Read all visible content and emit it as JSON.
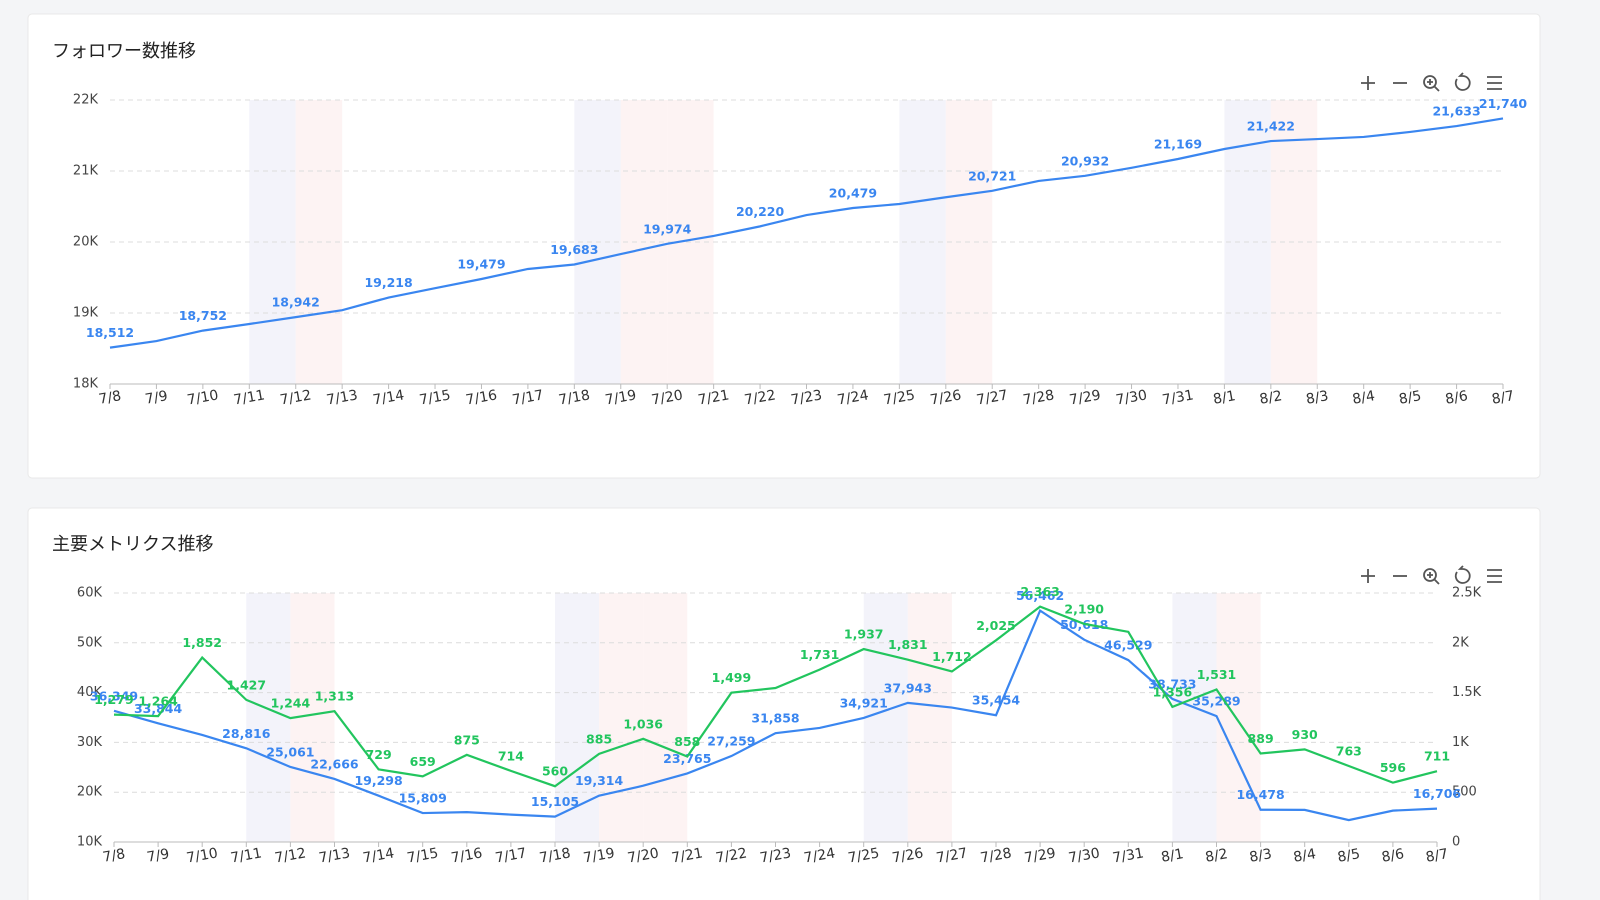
{
  "chart_data": [
    {
      "type": "line",
      "title": "フォロワー数推移",
      "categories": [
        "7/8",
        "7/9",
        "7/10",
        "7/11",
        "7/12",
        "7/13",
        "7/14",
        "7/15",
        "7/16",
        "7/17",
        "7/18",
        "7/19",
        "7/20",
        "7/21",
        "7/22",
        "7/23",
        "7/24",
        "7/25",
        "7/26",
        "7/27",
        "7/28",
        "7/29",
        "7/30",
        "7/31",
        "8/1",
        "8/2",
        "8/3",
        "8/4",
        "8/5",
        "8/6",
        "8/7"
      ],
      "series": [
        {
          "color": "#3a86f0",
          "values": [
            18512,
            18605,
            18752,
            18845,
            18942,
            19040,
            19218,
            19350,
            19479,
            19620,
            19683,
            19830,
            19974,
            20085,
            20220,
            20380,
            20479,
            20535,
            20630,
            20721,
            20860,
            20932,
            21045,
            21169,
            21310,
            21422,
            21450,
            21480,
            21550,
            21633,
            21740
          ],
          "value_labels": [
            "18,512",
            null,
            "18,752",
            null,
            "18,942",
            null,
            "19,218",
            null,
            "19,479",
            null,
            "19,683",
            null,
            "19,974",
            null,
            "20,220",
            null,
            "20,479",
            null,
            null,
            "20,721",
            null,
            "20,932",
            null,
            "21,169",
            null,
            "21,422",
            null,
            null,
            null,
            "21,633",
            "21,740"
          ]
        }
      ],
      "ylim": [
        18000,
        22000
      ],
      "yticks": [
        {
          "value": 18000,
          "label": "18K"
        },
        {
          "value": 19000,
          "label": "19K"
        },
        {
          "value": 20000,
          "label": "20K"
        },
        {
          "value": 21000,
          "label": "21K"
        },
        {
          "value": 22000,
          "label": "22K"
        }
      ],
      "grid": true
    },
    {
      "type": "line",
      "title": "主要メトリクス推移",
      "categories": [
        "7/8",
        "7/9",
        "7/10",
        "7/11",
        "7/12",
        "7/13",
        "7/14",
        "7/15",
        "7/16",
        "7/17",
        "7/18",
        "7/19",
        "7/20",
        "7/21",
        "7/22",
        "7/23",
        "7/24",
        "7/25",
        "7/26",
        "7/27",
        "7/28",
        "7/29",
        "7/30",
        "7/31",
        "8/1",
        "8/2",
        "8/3",
        "8/4",
        "8/5",
        "8/6",
        "8/7"
      ],
      "series": [
        {
          "color": "#3a86f0",
          "values": [
            36349,
            33844,
            31500,
            28816,
            25061,
            22666,
            19298,
            15809,
            16000,
            15500,
            15105,
            19314,
            21300,
            23765,
            27259,
            31858,
            32900,
            34921,
            37943,
            37000,
            35454,
            56462,
            50618,
            46529,
            38733,
            35289,
            16478,
            16450,
            14400,
            16300,
            16706
          ],
          "value_labels": [
            "36,349",
            "33,844",
            null,
            "28,816",
            "25,061",
            "22,666",
            "19,298",
            "15,809",
            null,
            null,
            "15,105",
            "19,314",
            null,
            "23,765",
            "27,259",
            "31,858",
            null,
            "34,921",
            "37,943",
            null,
            "35,454",
            "56,462",
            "50,618",
            "46,529",
            "38,733",
            "35,289",
            "16,478",
            null,
            null,
            null,
            "16,706"
          ]
        },
        {
          "color": "#22c55e",
          "axis": "y2",
          "values": [
            1279,
            1264,
            1852,
            1427,
            1244,
            1313,
            729,
            659,
            875,
            714,
            560,
            885,
            1036,
            858,
            1499,
            1546,
            1731,
            1937,
            1831,
            1712,
            2025,
            2363,
            2190,
            2110,
            1356,
            1531,
            889,
            930,
            763,
            596,
            711
          ],
          "value_labels": [
            "1,279",
            "1,264",
            "1,852",
            "1,427",
            "1,244",
            "1,313",
            "729",
            "659",
            "875",
            "714",
            "560",
            "885",
            "1,036",
            "858",
            "1,499",
            null,
            "1,731",
            "1,937",
            "1,831",
            "1,712",
            "2,025",
            "2,363",
            "2,190",
            null,
            "1,356",
            "1,531",
            "889",
            "930",
            "763",
            "596",
            "711"
          ]
        }
      ],
      "ylim": [
        10000,
        60000
      ],
      "yticks": [
        {
          "value": 10000,
          "label": "10K"
        },
        {
          "value": 20000,
          "label": "20K"
        },
        {
          "value": 30000,
          "label": "30K"
        },
        {
          "value": 40000,
          "label": "40K"
        },
        {
          "value": 50000,
          "label": "50K"
        },
        {
          "value": 60000,
          "label": "60K"
        }
      ],
      "y2lim": [
        0,
        2500
      ],
      "y2ticks": [
        0,
        500,
        {
          "value": 1000,
          "label": "1K"
        },
        {
          "value": 1500,
          "label": "1.5K"
        },
        {
          "value": 2000,
          "label": "2K"
        },
        {
          "value": 2500,
          "label": "2.5K"
        }
      ],
      "grid": true
    }
  ]
}
